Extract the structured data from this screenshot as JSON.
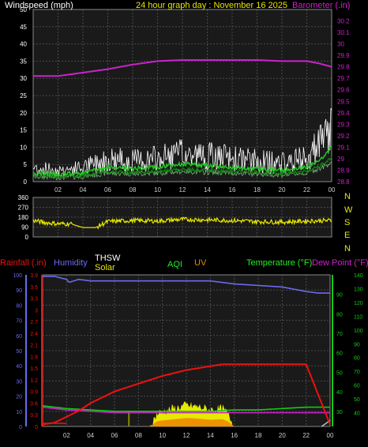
{
  "header": {
    "windspeed_label": "Windspeed (mph)",
    "title": "24 hour graph day : November 16 2025",
    "barometer_label": "Barometer (.in)"
  },
  "compass": [
    "N",
    "W",
    "S",
    "E",
    "N"
  ],
  "bottom_header": {
    "rainfall": "Rainfall (.in)",
    "humidity": "Humidity",
    "thsw": "THSW",
    "solar": "Solar",
    "aqi": "AQI",
    "uv": "UV",
    "temperature": "Temperature (°F)",
    "dewpoint": "Dew Point (°F)"
  },
  "colors": {
    "windspeed": "#ffffff",
    "gust": "#ffffff",
    "wind_avg": "#22cc22",
    "barometer": "#cc22cc",
    "direction": "#e8e800",
    "rain": "#ee1111",
    "humidity": "#6a6aee",
    "temperature": "#11cc11",
    "dewpoint": "#cc22cc",
    "solar": "#e8e800",
    "uv": "#ee8800",
    "thsw": "#c0c0c0",
    "grid": "#4a4a4a",
    "panel": "#1a1a1a"
  },
  "x_ticks": [
    "02",
    "04",
    "06",
    "08",
    "10",
    "12",
    "14",
    "16",
    "18",
    "20",
    "22",
    "00"
  ],
  "chart_data": [
    {
      "type": "line",
      "title": "24 hour graph day : November 16 2025",
      "x_unit": "hour",
      "ylabel": "Windspeed (mph)",
      "ylim": [
        0,
        50
      ],
      "y_ticks": [
        0,
        5,
        10,
        15,
        20,
        25,
        30,
        35,
        40,
        45,
        50
      ],
      "y2label": "Barometer (.in)",
      "y2lim": [
        28.8,
        30.3
      ],
      "y2_ticks": [
        "28.8",
        "28.9",
        "29",
        "29.1",
        "29.2",
        "29.3",
        "29.4",
        "29.5",
        "29.6",
        "29.7",
        "29.8",
        "29.9",
        "30",
        "30.1",
        "30.2"
      ],
      "series": [
        {
          "name": "Windspeed (mph)",
          "x": [
            0,
            2,
            4,
            6,
            8,
            10,
            12,
            14,
            16,
            18,
            20,
            22,
            23.5,
            24
          ],
          "values": [
            3,
            2.5,
            3,
            5,
            4.5,
            5,
            6,
            5.5,
            5,
            4.5,
            4,
            5,
            9,
            12
          ]
        },
        {
          "name": "Barometer (.in)",
          "x": [
            0,
            2,
            4,
            6,
            8,
            10,
            12,
            14,
            16,
            18,
            20,
            22,
            23,
            24
          ],
          "values": [
            29.72,
            29.72,
            29.75,
            29.78,
            29.82,
            29.85,
            29.86,
            29.86,
            29.86,
            29.86,
            29.85,
            29.85,
            29.83,
            29.8
          ]
        }
      ],
      "grid": true
    },
    {
      "type": "line",
      "ylim": [
        0,
        360
      ],
      "y_ticks": [
        0,
        90,
        180,
        270,
        360
      ],
      "series": [
        {
          "x": [
            0,
            1,
            2,
            3,
            4,
            5,
            6,
            8,
            10,
            12,
            14,
            16,
            18,
            20,
            22,
            24
          ],
          "values": [
            150,
            130,
            120,
            120,
            85,
            85,
            140,
            150,
            145,
            160,
            155,
            150,
            140,
            135,
            145,
            150
          ]
        }
      ],
      "grid": true
    },
    {
      "type": "line",
      "ylim_rain": [
        0,
        3.9
      ],
      "y_rain_ticks": [
        "0",
        "0.3",
        "0.6",
        "0.9",
        "1.2",
        "1.5",
        "1.8",
        "2.1",
        "2.4",
        "2.7",
        "3",
        "3.3",
        "3.6",
        "3.9"
      ],
      "ylim_humidity": [
        0,
        100
      ],
      "y_humidity_ticks": [
        0,
        10,
        20,
        30,
        40,
        50,
        60,
        70,
        80,
        90,
        100
      ],
      "ylim_temp": [
        30,
        140
      ],
      "y_temp_ticks": [
        40,
        50,
        60,
        70,
        80,
        90,
        100,
        110,
        120,
        130,
        140
      ],
      "y_temp_inner_ticks": [
        30,
        40,
        50,
        60,
        70,
        80,
        90
      ],
      "series": [
        {
          "x": [
            0,
            1,
            2,
            3,
            4,
            5,
            6,
            8,
            10,
            12,
            14,
            15,
            16,
            18,
            20,
            22,
            24
          ],
          "values": [
            0.05,
            0.1,
            0.25,
            0.4,
            0.6,
            0.75,
            0.9,
            1.1,
            1.3,
            1.45,
            1.55,
            1.6,
            1.6,
            1.6,
            1.6,
            1.6,
            0.05
          ]
        },
        {
          "x": [
            0,
            1,
            2,
            2.2,
            2.6,
            3,
            4,
            6,
            8,
            10,
            12,
            14,
            15,
            16,
            18,
            20,
            22,
            23,
            24
          ],
          "values": [
            99,
            99,
            97,
            95,
            96,
            97,
            96,
            96,
            96,
            96,
            96,
            96,
            95,
            94,
            93,
            92,
            89,
            88,
            88
          ]
        },
        {
          "x": [
            0,
            2,
            4,
            6,
            8,
            10,
            12,
            14,
            16,
            18,
            20,
            22,
            24
          ],
          "values": [
            45,
            43,
            42,
            41,
            41,
            41,
            41,
            41,
            42,
            42,
            43,
            44,
            44
          ]
        },
        {
          "x": [
            0,
            2,
            4,
            6,
            8,
            10,
            12,
            14,
            16,
            18,
            20,
            22,
            24
          ],
          "values": [
            44,
            42,
            41,
            40,
            40,
            40,
            40,
            40,
            40,
            40,
            40,
            40,
            40
          ]
        },
        {
          "x": [
            0,
            9,
            9.5,
            10,
            11,
            12,
            13,
            14,
            15,
            15.5,
            16,
            24
          ],
          "values": [
            0,
            0,
            8,
            10,
            12,
            14,
            13,
            11,
            12,
            8,
            0,
            0
          ]
        }
      ],
      "grid": true
    }
  ]
}
